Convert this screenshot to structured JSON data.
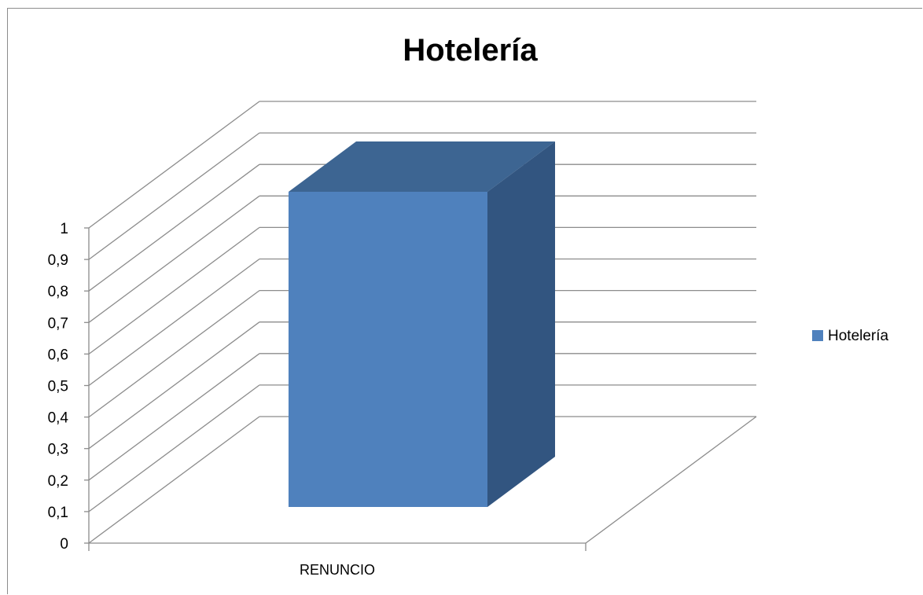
{
  "chart_data": {
    "type": "bar",
    "title": "Hotelería",
    "categories": [
      "RENUNCIO"
    ],
    "series": [
      {
        "name": "Hotelería",
        "values": [
          1
        ]
      }
    ],
    "ylim": [
      0,
      1
    ],
    "yticks": [
      "0",
      "0,1",
      "0,2",
      "0,3",
      "0,4",
      "0,5",
      "0,6",
      "0,7",
      "0,8",
      "0,9",
      "1"
    ],
    "grid": true,
    "legend": "right",
    "colors": {
      "front": "#4f81bd",
      "top": "#3d6592",
      "side": "#325580",
      "grid": "#8c8c8c"
    }
  }
}
